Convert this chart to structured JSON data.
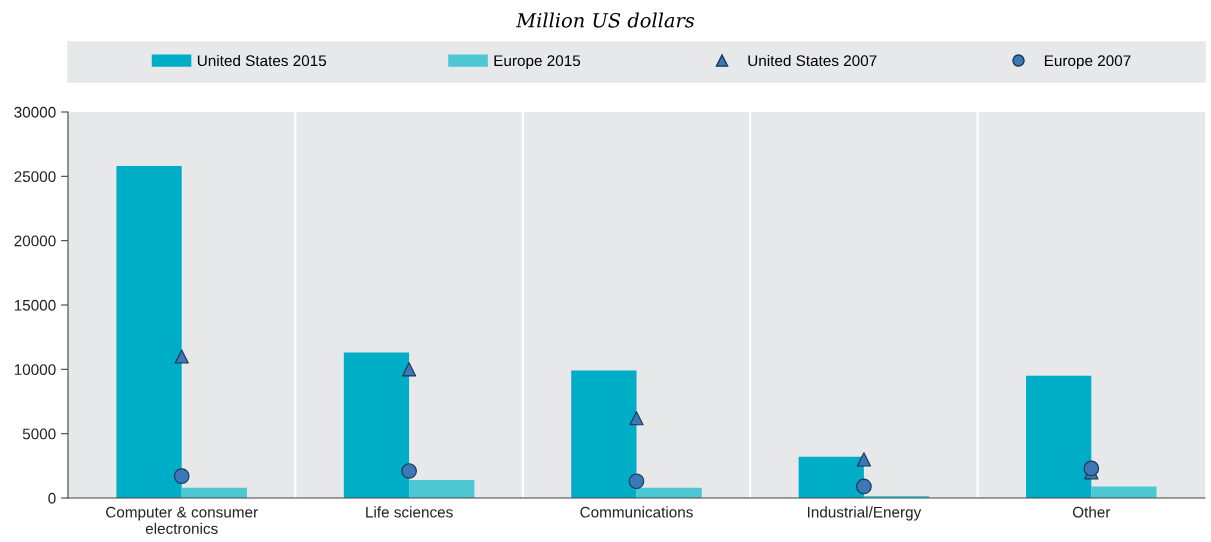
{
  "chart_data": {
    "type": "bar",
    "title": "Million US dollars",
    "categories": [
      "Computer & consumer\nelectronics",
      "Life sciences",
      "Communications",
      "Industrial/Energy",
      "Other"
    ],
    "series": [
      {
        "name": "United States 2015",
        "color": "#00adc6",
        "values": [
          25800,
          11300,
          9900,
          3200,
          9500
        ]
      },
      {
        "name": "Europe 2015",
        "color": "#4dc8d2",
        "values": [
          800,
          1400,
          800,
          150,
          900
        ]
      },
      {
        "name": "United States 2007",
        "type": "scatter",
        "marker": "triangle",
        "color": "#3a78b8",
        "values": [
          11000,
          10000,
          6200,
          3000,
          2000
        ]
      },
      {
        "name": "Europe 2007",
        "type": "scatter",
        "marker": "circle",
        "color": "#3a78b8",
        "values": [
          1700,
          2100,
          1300,
          900,
          2300
        ]
      }
    ],
    "ylim": [
      0,
      30000
    ],
    "yticks": [
      0,
      5000,
      10000,
      15000,
      20000,
      25000,
      30000
    ],
    "grid": "x",
    "legend": "top"
  }
}
